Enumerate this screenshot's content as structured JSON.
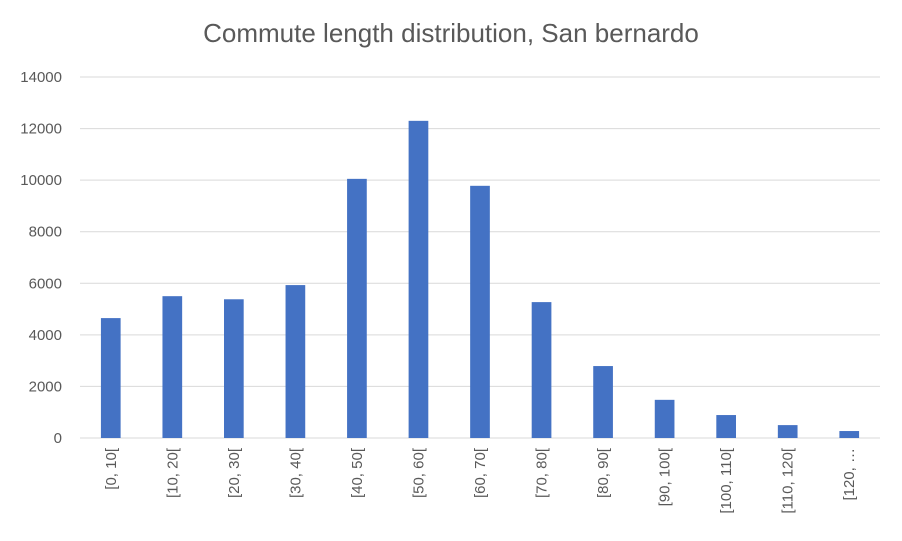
{
  "chart_data": {
    "type": "bar",
    "title": "Commute length distribution, San bernardo",
    "xlabel": "",
    "ylabel": "",
    "categories": [
      "[0, 10[",
      "[10, 20[",
      "[20, 30[",
      "[30, 40[",
      "[40, 50[",
      "[50, 60[",
      "[60, 70[",
      "[70, 80[",
      "[80, 90[",
      "[90, 100[",
      "[100, 110[",
      "[110, 120[",
      "[120, …"
    ],
    "values": [
      4650,
      5500,
      5380,
      5930,
      10050,
      12300,
      9780,
      5270,
      2790,
      1480,
      890,
      500,
      270
    ],
    "ylim": [
      0,
      14000
    ],
    "yticks": [
      0,
      2000,
      4000,
      6000,
      8000,
      10000,
      12000,
      14000
    ],
    "grid": true,
    "legend": "none",
    "bar_color": "#4472C4"
  }
}
